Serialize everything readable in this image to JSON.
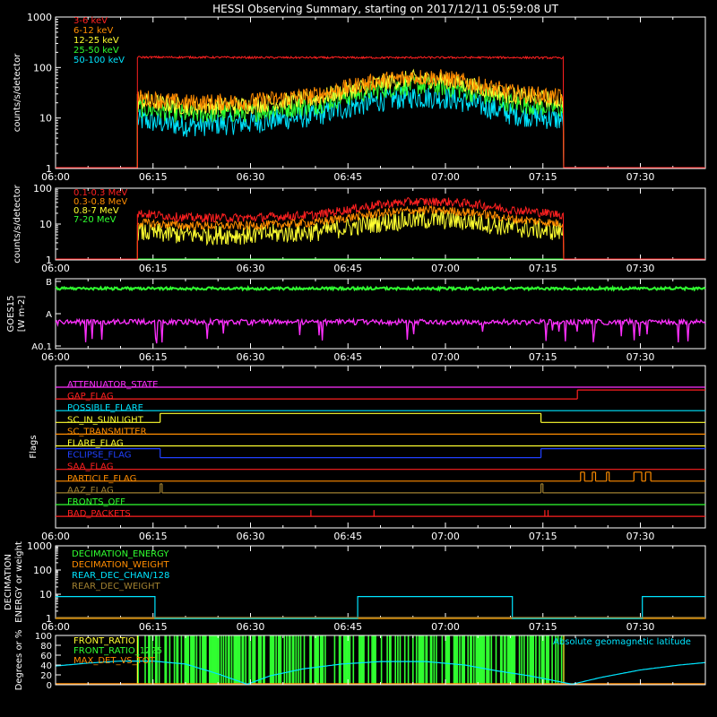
{
  "title": "HESSI Observing Summary, starting on 2017/12/11 05:59:08 UT",
  "time_axis": {
    "tick_labels": [
      "06:00",
      "06:15",
      "06:30",
      "06:45",
      "07:00",
      "07:15",
      "07:30"
    ],
    "tick_values_min": [
      0,
      15,
      30,
      45,
      60,
      75,
      90
    ],
    "range_min": [
      0,
      100
    ]
  },
  "chart_data": [
    {
      "type": "line",
      "panel": "count-rates-low",
      "ylabel": "counts/s/detector",
      "yscale": "log",
      "ylim": [
        1,
        1000
      ],
      "ytick_labels": [
        "1",
        "10",
        "100",
        "1000"
      ],
      "ytick_values": [
        1,
        10,
        100,
        1000
      ],
      "x_range_on_min": [
        12.6,
        78.2
      ],
      "series": [
        {
          "name": "3-6 keV",
          "color": "#ff2020",
          "x": [
            12.6,
            20,
            30,
            40,
            50,
            60,
            70,
            78.2
          ],
          "values": [
            160,
            160,
            158,
            157,
            157,
            158,
            158,
            155
          ]
        },
        {
          "name": "6-12 keV",
          "color": "#ff8c00",
          "x": [
            12.6,
            20,
            30,
            40,
            45,
            50,
            55,
            60,
            65,
            70,
            78.2
          ],
          "values": [
            25,
            20,
            21,
            28,
            40,
            55,
            65,
            62,
            45,
            32,
            25
          ]
        },
        {
          "name": "12-25 keV",
          "color": "#ffff30",
          "x": [
            12.6,
            20,
            30,
            40,
            45,
            50,
            55,
            60,
            65,
            70,
            78.2
          ],
          "values": [
            22,
            17,
            18,
            24,
            35,
            50,
            60,
            57,
            40,
            28,
            22
          ]
        },
        {
          "name": "25-50 keV",
          "color": "#30ff30",
          "x": [
            12.6,
            20,
            30,
            40,
            45,
            50,
            55,
            60,
            65,
            70,
            78.2
          ],
          "values": [
            16,
            12,
            13,
            18,
            27,
            38,
            45,
            42,
            30,
            20,
            15
          ]
        },
        {
          "name": "50-100 keV",
          "color": "#00e5ff",
          "x": [
            12.6,
            20,
            30,
            40,
            45,
            50,
            55,
            60,
            65,
            70,
            78.2
          ],
          "values": [
            9,
            7,
            8,
            11,
            16,
            22,
            26,
            25,
            18,
            12,
            9
          ]
        }
      ]
    },
    {
      "type": "line",
      "panel": "count-rates-high",
      "ylabel": "counts/s/detector",
      "yscale": "log",
      "ylim": [
        1,
        100
      ],
      "ytick_labels": [
        "1",
        "10",
        "100"
      ],
      "ytick_values": [
        1,
        10,
        100
      ],
      "x_range_on_min": [
        12.6,
        78.2
      ],
      "series": [
        {
          "name": "0.1-0.3 MeV",
          "color": "#ff2020",
          "x": [
            12.6,
            20,
            30,
            40,
            45,
            50,
            55,
            60,
            65,
            70,
            78.2
          ],
          "values": [
            20,
            15,
            15,
            18,
            25,
            35,
            42,
            42,
            35,
            25,
            18
          ]
        },
        {
          "name": "0.3-0.8 MeV",
          "color": "#ff8c00",
          "x": [
            12.6,
            20,
            30,
            40,
            45,
            50,
            55,
            60,
            65,
            70,
            78.2
          ],
          "values": [
            11,
            9,
            9,
            11,
            15,
            20,
            24,
            24,
            20,
            14,
            10
          ]
        },
        {
          "name": "0.8-7 MeV",
          "color": "#ffff30",
          "x": [
            12.6,
            20,
            30,
            40,
            45,
            50,
            55,
            60,
            65,
            70,
            78.2
          ],
          "values": [
            6,
            5,
            5,
            6,
            8,
            11,
            13,
            13,
            11,
            8,
            6
          ]
        },
        {
          "name": "7-20 MeV",
          "color": "#30ff30",
          "x": [
            0,
            100
          ],
          "values": [
            1,
            1
          ]
        }
      ]
    },
    {
      "type": "line",
      "panel": "goes",
      "ylabel": "GOES15",
      "ylabel_units": "[W m-2]",
      "ytick_labels": [
        "A0.1",
        "A",
        "B"
      ],
      "series": [
        {
          "name": "long",
          "color": "#30ff30",
          "level_fraction": 0.86
        },
        {
          "name": "short",
          "color": "#ff30ff",
          "level_fraction": 0.38
        }
      ]
    },
    {
      "type": "line",
      "panel": "decimation",
      "ylabel": "DECIMATION ENERGY or weight",
      "yscale": "log",
      "ylim": [
        1,
        1000
      ],
      "ytick_labels": [
        "1",
        "10",
        "100",
        "1000"
      ],
      "ytick_values": [
        1,
        10,
        100,
        1000
      ],
      "series": [
        {
          "name": "DECIMATION_ENERGY",
          "color": "#30ff30",
          "x": [
            0,
            100
          ],
          "values": [
            1,
            1
          ]
        },
        {
          "name": "DECIMATION_WEIGHT",
          "color": "#ff8c00",
          "x": [
            0,
            100
          ],
          "values": [
            1,
            1
          ]
        },
        {
          "name": "REAR_DEC_CHAN/128",
          "color": "#00e5ff",
          "x": [
            0,
            15.3,
            15.3,
            46.5,
            46.5,
            70.3,
            70.3,
            90.3,
            90.3,
            100
          ],
          "values": [
            8,
            8,
            1,
            1,
            8,
            8,
            1,
            1,
            8,
            8
          ]
        },
        {
          "name": "REAR_DEC_WEIGHT",
          "color": "#a08030",
          "x": [
            0,
            100
          ],
          "values": [
            1,
            1
          ]
        }
      ]
    },
    {
      "type": "line",
      "panel": "ratios",
      "ylabel": "Degrees or %",
      "ylim": [
        0,
        100
      ],
      "ytick_labels": [
        "0",
        "20",
        "40",
        "60",
        "80",
        "100"
      ],
      "ytick_values": [
        0,
        20,
        40,
        60,
        80,
        100
      ],
      "series": [
        {
          "name": "FRONT_RATIO",
          "color": "#ffff30"
        },
        {
          "name": "FRONT_RATIO_1225",
          "color": "#30ff30"
        },
        {
          "name": "MAX_DET_VS_TOT",
          "color": "#ff8c00"
        },
        {
          "name": "Absolute geomagnetic latitude",
          "color": "#00e5ff",
          "x": [
            0,
            5,
            10,
            15,
            20,
            25,
            29.5,
            33,
            38,
            44,
            50,
            57,
            63,
            68,
            73,
            78,
            79.5,
            84,
            90,
            96,
            100
          ],
          "values": [
            38,
            44,
            48,
            48,
            42,
            22,
            1,
            18,
            32,
            42,
            47,
            47,
            40,
            28,
            18,
            5,
            1,
            15,
            30,
            40,
            45
          ]
        }
      ]
    }
  ],
  "flags": {
    "ylabel": "Flags",
    "rows": [
      {
        "name": "ATTENUATOR_STATE",
        "color": "#ff30ff",
        "segments": [
          [
            0,
            100,
            0
          ]
        ]
      },
      {
        "name": "GAP_FLAG",
        "color": "#ff2020",
        "segments": [
          [
            0,
            80.3,
            0
          ],
          [
            80.3,
            100,
            1
          ]
        ]
      },
      {
        "name": "POSSIBLE_FLARE",
        "color": "#00e5ff",
        "segments": [
          [
            0,
            100,
            0
          ]
        ]
      },
      {
        "name": "SC_IN_SUNLIGHT",
        "color": "#ffff30",
        "segments": [
          [
            0,
            16.1,
            0
          ],
          [
            16.1,
            74.7,
            1
          ],
          [
            74.7,
            100,
            0
          ]
        ]
      },
      {
        "name": "SC_TRANSMITTER",
        "color": "#ff8c00",
        "segments": [
          [
            0,
            100,
            0
          ]
        ]
      },
      {
        "name": "FLARE_FLAG",
        "color": "#ffff30",
        "segments": [
          [
            0,
            100,
            0
          ]
        ]
      },
      {
        "name": "ECLIPSE_FLAG",
        "color": "#2040ff",
        "segments": [
          [
            0,
            16.1,
            1
          ],
          [
            16.1,
            74.7,
            0
          ],
          [
            74.7,
            100,
            1
          ]
        ]
      },
      {
        "name": "SAA_FLAG",
        "color": "#ff2020",
        "segments": [
          [
            0,
            100,
            0
          ]
        ]
      },
      {
        "name": "PARTICLE_FLAG",
        "color": "#ff8c00",
        "segments": [
          [
            0,
            80.8,
            0
          ],
          [
            80.8,
            81.4,
            1
          ],
          [
            81.4,
            82.6,
            0
          ],
          [
            82.6,
            83.1,
            1
          ],
          [
            83.1,
            84.8,
            0
          ],
          [
            84.8,
            85.2,
            1
          ],
          [
            85.2,
            89.0,
            0
          ],
          [
            89.0,
            90.2,
            1
          ],
          [
            90.2,
            90.8,
            0
          ],
          [
            90.8,
            91.6,
            1
          ],
          [
            91.6,
            100,
            0
          ]
        ]
      },
      {
        "name": "AAZ_FLAG",
        "color": "#a08030",
        "segments": [
          [
            0,
            16.1,
            0
          ],
          [
            16.1,
            16.4,
            1
          ],
          [
            16.4,
            74.7,
            0
          ],
          [
            74.7,
            75.0,
            1
          ],
          [
            75.0,
            100,
            0
          ]
        ]
      },
      {
        "name": "FRONTS_OFF",
        "color": "#30ff30",
        "segments": [
          [
            0,
            100,
            0
          ]
        ]
      },
      {
        "name": "BAD_PACKETS",
        "color": "#ff2020",
        "segments": [
          [
            0,
            100,
            0
          ]
        ],
        "spikes": [
          39.3,
          49.0,
          75.3,
          75.8
        ]
      }
    ]
  }
}
